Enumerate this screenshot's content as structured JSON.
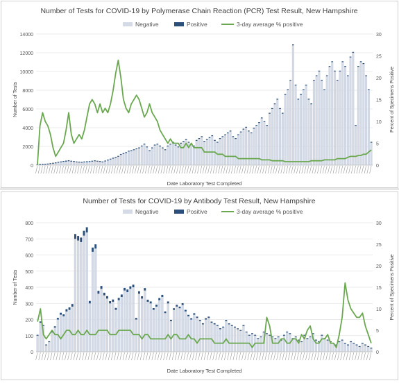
{
  "chart_data": [
    {
      "type": "bar",
      "title": "Number of Tests for COVID-19 by Polymerase Chain Reaction (PCR) Test Result, New Hampshire",
      "xlabel": "Date Laboratory Test Completed",
      "ylabel": "Number of Tests",
      "y2label": "Percent of Specimens Positive",
      "ylim": [
        0,
        14000
      ],
      "y2lim": [
        0,
        30
      ],
      "yticks": [
        "0",
        "2000",
        "4000",
        "6000",
        "8000",
        "10000",
        "12000",
        "14000"
      ],
      "y2ticks": [
        "0",
        "5",
        "10",
        "15",
        "20",
        "25",
        "30"
      ],
      "legend": [
        "Negative",
        "Positive",
        "3-day average % positive"
      ],
      "legend_position": "top",
      "grid": true,
      "colors": {
        "negative": "#d5dbe6",
        "positive": "#2b4f7a",
        "line": "#6aa84f"
      },
      "series": [
        {
          "name": "Negative",
          "values": [
            0,
            30,
            40,
            60,
            80,
            120,
            160,
            200,
            260,
            300,
            350,
            380,
            420,
            380,
            350,
            300,
            280,
            260,
            300,
            320,
            340,
            380,
            420,
            380,
            350,
            300,
            400,
            500,
            600,
            700,
            800,
            900,
            1100,
            1200,
            1300,
            1450,
            1500,
            1600,
            1700,
            1800,
            2000,
            2200,
            1900,
            1500,
            1800,
            2100,
            2200,
            2000,
            1800,
            1600,
            2000,
            2200,
            2400,
            2100,
            1900,
            2300,
            2500,
            2700,
            2400,
            2200,
            2000,
            2600,
            2800,
            3000,
            2500,
            2700,
            2900,
            3100,
            2600,
            2400,
            2800,
            3000,
            3200,
            3400,
            3600,
            3000,
            2800,
            3200,
            3500,
            3800,
            4000,
            3600,
            3400,
            3900,
            4200,
            4500,
            5000,
            4600,
            4200,
            5500,
            6000,
            6500,
            7000,
            6000,
            5500,
            7500,
            8000,
            9000,
            12800,
            8500,
            7000,
            7500,
            8000,
            8500,
            7000,
            6500,
            9000,
            9500,
            10000,
            9000,
            8000,
            9500,
            10500,
            11000,
            10000,
            9000,
            10000,
            11000,
            10500,
            9500,
            11500,
            12000,
            4200,
            10500,
            11000,
            10800,
            9500,
            8000,
            2400
          ]
        },
        {
          "name": "Positive",
          "values": [
            0,
            10,
            15,
            20,
            30,
            45,
            60,
            70,
            80,
            90,
            95,
            100,
            100,
            90,
            80,
            70,
            60,
            55,
            60,
            60,
            60,
            65,
            60,
            55,
            50,
            45,
            50,
            55,
            60,
            60,
            60,
            55,
            55,
            55,
            50,
            50,
            45,
            45,
            40,
            40,
            40,
            40,
            30,
            25,
            30,
            30,
            30,
            25,
            20,
            20,
            25,
            25,
            25,
            20,
            20,
            20,
            25,
            25,
            20,
            20,
            15,
            20,
            20,
            20,
            15,
            15,
            20,
            20,
            15,
            15,
            15,
            15,
            15,
            15,
            15,
            15,
            12,
            15,
            15,
            15,
            15,
            15,
            12,
            15,
            15,
            15,
            15,
            15,
            12,
            20,
            20,
            20,
            20,
            20,
            20,
            25,
            25,
            30,
            35,
            30,
            25,
            25,
            30,
            30,
            25,
            25,
            30,
            35,
            35,
            30,
            30,
            35,
            40,
            45,
            40,
            40,
            45,
            50,
            50,
            45,
            55,
            60,
            25,
            60,
            70,
            75,
            70,
            60,
            40
          ]
        },
        {
          "name": "3-day average % positive",
          "values": [
            0,
            9,
            12,
            10,
            9,
            7,
            4,
            2,
            3,
            4,
            5,
            8,
            12,
            7,
            5,
            6,
            7,
            6,
            8,
            11,
            14,
            15,
            14,
            12,
            14,
            12,
            13,
            12,
            14,
            17,
            21,
            24,
            20,
            15,
            13,
            12,
            14,
            15,
            16,
            15,
            13,
            11,
            12,
            14,
            12,
            11,
            10,
            8,
            7,
            6,
            5,
            6,
            5,
            5,
            5,
            4,
            4,
            5,
            4,
            5,
            4,
            4,
            4,
            4,
            3,
            3,
            3,
            3,
            3,
            2.5,
            2.5,
            2.5,
            2,
            2,
            2,
            2,
            2,
            1.5,
            1.5,
            1.5,
            1.5,
            1.5,
            1.5,
            1.5,
            1.5,
            1.5,
            1.2,
            1.2,
            1.2,
            1.2,
            1,
            1,
            1,
            1,
            1,
            0.8,
            0.8,
            0.8,
            0.8,
            0.8,
            0.8,
            0.8,
            0.8,
            0.8,
            0.8,
            1,
            1,
            1,
            1,
            1,
            1.2,
            1.2,
            1.2,
            1.2,
            1.2,
            1.5,
            1.5,
            1.5,
            1.5,
            1.8,
            2,
            2,
            2,
            2.2,
            2.2,
            2.5,
            2.5,
            3,
            3.5
          ]
        }
      ]
    },
    {
      "type": "bar",
      "title": "Number of Tests for COVID-19 by Antibody Test Result, New Hampshire",
      "xlabel": "Date Laboratory Test Completed",
      "ylabel": "Number of Tests",
      "y2label": "Percent of Specimens Positive",
      "ylim": [
        0,
        800
      ],
      "y2lim": [
        0,
        30
      ],
      "yticks": [
        "0",
        "100",
        "200",
        "300",
        "400",
        "500",
        "600",
        "700",
        "800"
      ],
      "y2ticks": [
        "0",
        "5",
        "10",
        "15",
        "20",
        "25",
        "30"
      ],
      "legend": [
        "Negative",
        "Positive",
        "3-day average % positive"
      ],
      "legend_position": "top",
      "grid": true,
      "colors": {
        "negative": "#d5dbe6",
        "positive": "#2b4f7a",
        "line": "#6aa84f"
      },
      "series": [
        {
          "name": "Negative",
          "values": [
            100,
            180,
            160,
            40,
            60,
            120,
            150,
            200,
            230,
            220,
            250,
            260,
            280,
            700,
            690,
            680,
            720,
            740,
            300,
            620,
            640,
            360,
            390,
            350,
            330,
            300,
            310,
            260,
            320,
            340,
            380,
            370,
            390,
            400,
            200,
            360,
            330,
            380,
            310,
            300,
            260,
            280,
            320,
            340,
            240,
            300,
            190,
            260,
            280,
            270,
            290,
            250,
            220,
            200,
            230,
            210,
            190,
            170,
            200,
            210,
            180,
            170,
            160,
            140,
            150,
            190,
            170,
            160,
            150,
            140,
            130,
            160,
            120,
            100,
            110,
            100,
            80,
            90,
            120,
            110,
            100,
            90,
            80,
            90,
            70,
            100,
            120,
            110,
            80,
            90,
            70,
            60,
            100,
            80,
            90,
            110,
            70,
            60,
            100,
            80,
            70,
            60,
            50,
            40,
            60,
            70,
            50,
            40,
            60,
            50,
            40,
            30,
            50,
            40,
            30,
            20
          ]
        },
        {
          "name": "Positive",
          "values": [
            5,
            8,
            6,
            3,
            4,
            6,
            8,
            10,
            12,
            12,
            14,
            15,
            16,
            30,
            28,
            28,
            30,
            32,
            15,
            26,
            26,
            18,
            18,
            16,
            15,
            14,
            14,
            12,
            14,
            15,
            16,
            16,
            16,
            16,
            10,
            15,
            14,
            15,
            13,
            12,
            11,
            12,
            13,
            13,
            10,
            12,
            8,
            10,
            11,
            10,
            11,
            10,
            9,
            8,
            9,
            8,
            7,
            7,
            8,
            8,
            7,
            7,
            6,
            6,
            6,
            7,
            6,
            6,
            6,
            5,
            5,
            6,
            5,
            4,
            4,
            4,
            3,
            4,
            5,
            4,
            4,
            4,
            3,
            4,
            3,
            4,
            5,
            4,
            3,
            4,
            3,
            3,
            4,
            3,
            4,
            4,
            3,
            3,
            5,
            4,
            3,
            3,
            3,
            2,
            3,
            3,
            2,
            2,
            3,
            2,
            2,
            2,
            2,
            2,
            1,
            1
          ]
        },
        {
          "name": "3-day average % positive",
          "values": [
            7,
            10,
            4,
            3,
            4,
            5,
            4,
            4,
            3,
            4,
            5,
            5,
            4,
            4,
            5,
            4,
            4,
            5,
            4,
            4,
            4,
            5,
            5,
            5,
            5,
            4,
            4,
            4,
            5,
            5,
            5,
            5,
            5,
            4,
            4,
            4,
            3,
            4,
            4,
            3,
            3,
            3,
            3,
            3,
            3,
            4,
            3,
            4,
            4,
            3,
            3,
            3,
            4,
            3,
            3,
            2,
            3,
            3,
            3,
            3,
            3,
            2,
            2,
            2,
            2,
            3,
            2,
            2,
            2,
            2,
            2,
            2,
            2,
            2,
            1,
            2,
            2,
            2,
            2,
            8,
            6,
            2,
            2,
            2,
            3,
            3,
            2,
            2,
            3,
            3,
            2,
            4,
            3,
            5,
            6,
            3,
            2,
            2,
            3,
            3,
            4,
            2,
            2,
            1,
            4,
            8,
            16,
            12,
            10,
            9,
            8,
            8,
            9,
            6,
            4,
            2
          ]
        }
      ]
    }
  ]
}
